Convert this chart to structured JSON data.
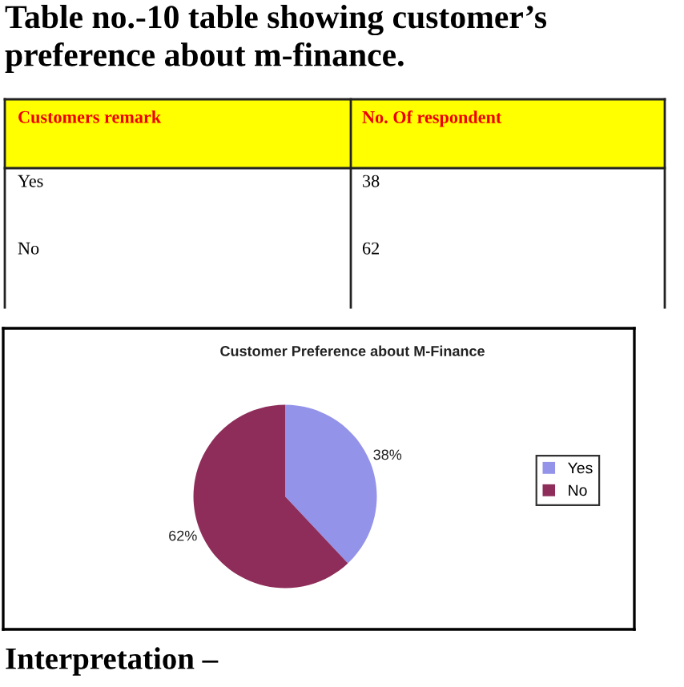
{
  "chart_data": {
    "type": "pie",
    "title": "Table no.-10 table showing customer’s preference about m-finance.",
    "subtitle": "Customer Preference about M-Finance",
    "categories": [
      "Yes",
      "No"
    ],
    "values": [
      38,
      62
    ],
    "colors": [
      "#9393ea",
      "#8e2d5a"
    ],
    "value_labels": [
      "38%",
      "62%"
    ],
    "legend": "right",
    "annotations": [
      "Customers remark",
      "No. Of respondent",
      "38",
      "62",
      "Interpretation –"
    ]
  }
}
